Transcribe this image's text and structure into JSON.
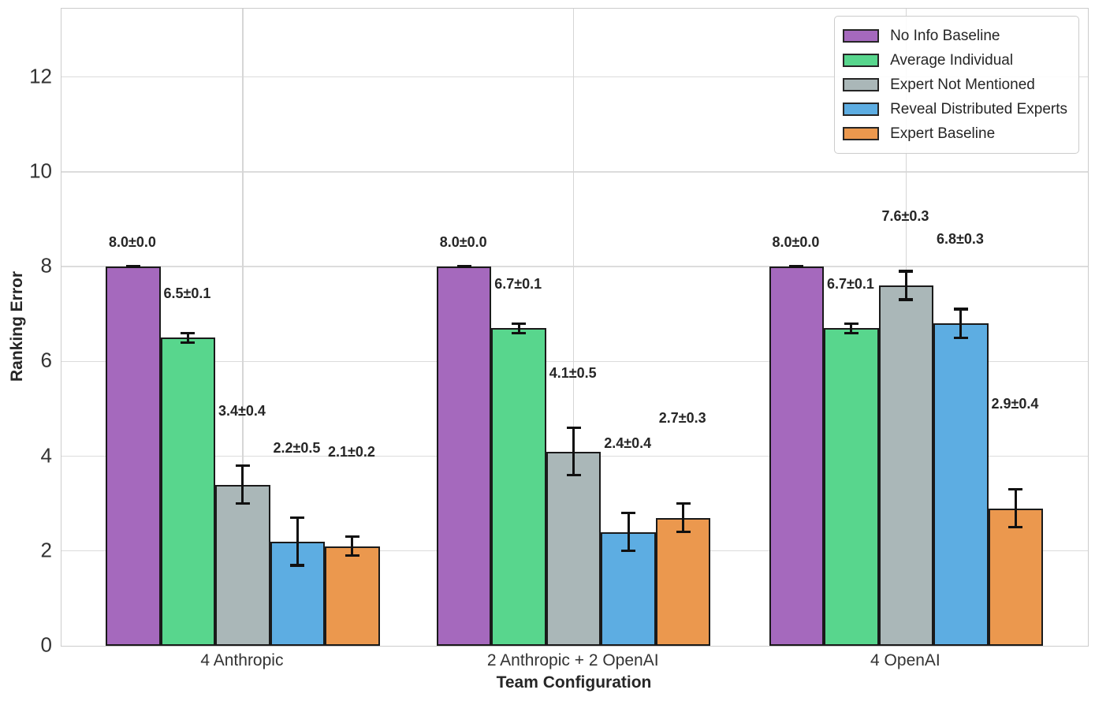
{
  "chart_data": {
    "type": "bar",
    "title": "",
    "xlabel": "Team Configuration",
    "ylabel": "Ranking Error",
    "categories": [
      "4 Anthropic",
      "2 Anthropic + 2 OpenAI",
      "4 OpenAI"
    ],
    "series": [
      {
        "name": "No Info Baseline",
        "color": "#A569BD",
        "values": [
          8.0,
          8.0,
          8.0
        ],
        "errors": [
          0.0,
          0.0,
          0.0
        ],
        "labels": [
          "8.0±0.0",
          "8.0±0.0",
          "8.0±0.0"
        ]
      },
      {
        "name": "Average Individual",
        "color": "#58D68D",
        "values": [
          6.5,
          6.7,
          6.7
        ],
        "errors": [
          0.1,
          0.1,
          0.1
        ],
        "labels": [
          "6.5±0.1",
          "6.7±0.1",
          "6.7±0.1"
        ]
      },
      {
        "name": "Expert Not Mentioned",
        "color": "#AAB7B8",
        "values": [
          3.4,
          4.1,
          7.6
        ],
        "errors": [
          0.4,
          0.5,
          0.3
        ],
        "labels": [
          "3.4±0.4",
          "4.1±0.5",
          "7.6±0.3"
        ]
      },
      {
        "name": "Reveal Distributed Experts",
        "color": "#5DADE2",
        "values": [
          2.2,
          2.4,
          6.8
        ],
        "errors": [
          0.5,
          0.4,
          0.3
        ],
        "labels": [
          "2.2±0.5",
          "2.4±0.4",
          "6.8±0.3"
        ]
      },
      {
        "name": "Expert Baseline",
        "color": "#EB984E",
        "values": [
          2.1,
          2.7,
          2.9
        ],
        "errors": [
          0.2,
          0.3,
          0.4
        ],
        "labels": [
          "2.1±0.2",
          "2.7±0.3",
          "2.9±0.4"
        ]
      }
    ],
    "ytick_labels": [
      "0",
      "2",
      "4",
      "6",
      "8",
      "10",
      "12"
    ],
    "yticks": [
      0,
      2,
      4,
      6,
      8,
      10,
      12
    ],
    "ylim": [
      0,
      13.44
    ],
    "grid": true,
    "legend_position": "upper right",
    "colors": {
      "bar_edge": "#1a1a1a",
      "error_bar": "#111111",
      "gridline": "#dcdcdc",
      "spine": "#cccccc",
      "text": "#262626"
    }
  }
}
